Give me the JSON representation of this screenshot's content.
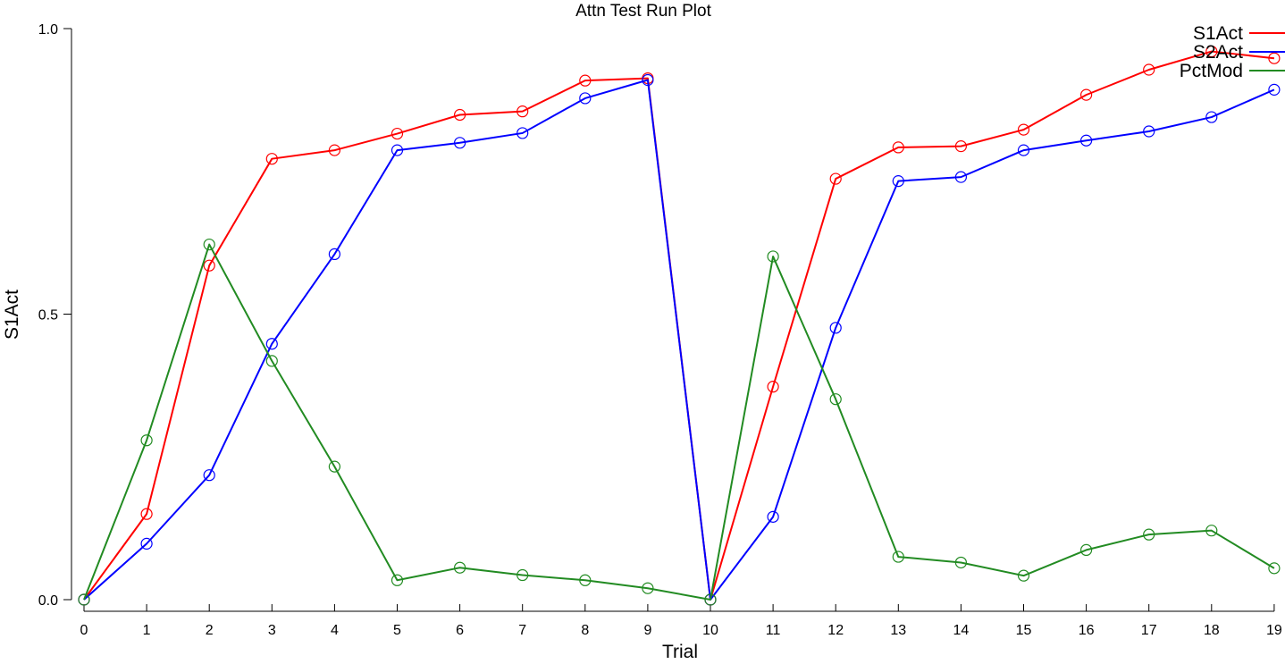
{
  "chart_data": {
    "type": "line",
    "title": "Attn Test Run Plot",
    "xlabel": "Trial",
    "ylabel": "S1Act",
    "xlim": [
      0,
      19
    ],
    "ylim": [
      0,
      1
    ],
    "x_ticks": [
      "0",
      "1",
      "2",
      "3",
      "4",
      "5",
      "6",
      "7",
      "8",
      "9",
      "10",
      "11",
      "12",
      "13",
      "14",
      "15",
      "16",
      "17",
      "18",
      "19"
    ],
    "y_ticks": [
      "0.0",
      "0.5",
      "1.0"
    ],
    "y_tick_values": [
      0,
      0.5,
      1
    ],
    "grid": false,
    "legend_position": "top-right",
    "markers": "open-circle",
    "x": [
      0,
      1,
      2,
      3,
      4,
      5,
      6,
      7,
      8,
      9,
      10,
      11,
      12,
      13,
      14,
      15,
      16,
      17,
      18,
      19
    ],
    "series": [
      {
        "name": "S1Act",
        "color": "#ff0000",
        "values": [
          0.0,
          0.15,
          0.585,
          0.772,
          0.787,
          0.816,
          0.849,
          0.855,
          0.909,
          0.913,
          0.0,
          0.373,
          0.737,
          0.792,
          0.794,
          0.823,
          0.884,
          0.928,
          0.96,
          0.948
        ]
      },
      {
        "name": "S2Act",
        "color": "#0000ff",
        "values": [
          0.0,
          0.098,
          0.218,
          0.448,
          0.605,
          0.787,
          0.8,
          0.817,
          0.878,
          0.91,
          0.0,
          0.145,
          0.476,
          0.733,
          0.74,
          0.787,
          0.804,
          0.82,
          0.845,
          0.893
        ]
      },
      {
        "name": "PctMod",
        "color": "#228b22",
        "values": [
          0.0,
          0.279,
          0.622,
          0.418,
          0.233,
          0.034,
          0.056,
          0.043,
          0.034,
          0.02,
          0.0,
          0.601,
          0.351,
          0.075,
          0.065,
          0.042,
          0.087,
          0.114,
          0.121,
          0.055
        ]
      }
    ]
  }
}
